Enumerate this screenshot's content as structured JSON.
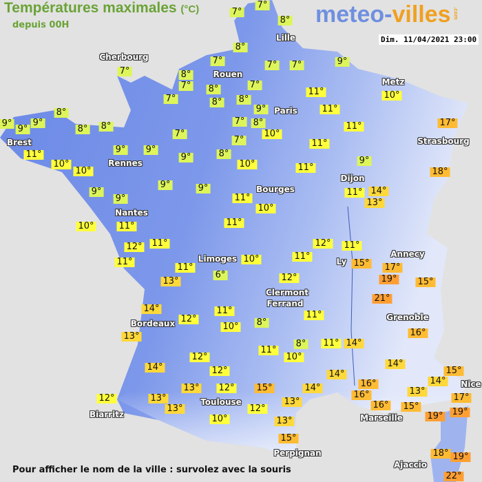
{
  "header": {
    "title": "Températures maximales",
    "unit": "(°C)",
    "subtitle": "depuis 00H",
    "logo_main": "meteo-",
    "logo_accent": "villes",
    "logo_suffix": ".com",
    "datetime": "Dim. 11/04/2021 23:00"
  },
  "footer": {
    "hint": "Pour afficher le nom de la ville : survolez avec la souris"
  },
  "colors": {
    "cold": "#ddf55a",
    "mild": "#ffff3c",
    "warm": "#ffd83a",
    "hot": "#ffbb33",
    "very_hot": "#ff9f33",
    "land": "#6e8ee8",
    "sea": "#e2e2e2"
  },
  "cities": [
    "Lille",
    "Cherbourg",
    "Rouen",
    "Paris",
    "Metz",
    "Strasbourg",
    "Brest",
    "Rennes",
    "Dijon",
    "Bourges",
    "Nantes",
    "Limoges",
    "Ly",
    "Annecy",
    "Clermont",
    "Ferrand",
    "Bordeaux",
    "Grenoble",
    "Toulouse",
    "Biarritz",
    "Marseille",
    "Nice",
    "Perpignan",
    "Ajaccio"
  ],
  "temperatures": [
    "7°",
    "7°",
    "8°",
    "7°",
    "8°",
    "7°",
    "7°",
    "8°",
    "7°",
    "7°",
    "9°",
    "7°",
    "8°",
    "8°",
    "7°",
    "8°",
    "9°",
    "7°",
    "8°",
    "7°",
    "10°",
    "11°",
    "11°",
    "10°",
    "11°",
    "11°",
    "17°",
    "18°",
    "9°",
    "9°",
    "9°",
    "8°",
    "8°",
    "8°",
    "11°",
    "10°",
    "10°",
    "9°",
    "9°",
    "7°",
    "9°",
    "8°",
    "10°",
    "11°",
    "9°",
    "9°",
    "9°",
    "9°",
    "9°",
    "11°",
    "10°",
    "11°",
    "14°",
    "13°",
    "10°",
    "11°",
    "11°",
    "12°",
    "11°",
    "11°",
    "12°",
    "11°",
    "11°",
    "10°",
    "15°",
    "17°",
    "19°",
    "11°",
    "13°",
    "6°",
    "12°",
    "15°",
    "21°",
    "14°",
    "11°",
    "12°",
    "10°",
    "8°",
    "11°",
    "13°",
    "16°",
    "8°",
    "11°",
    "14°",
    "11°",
    "10°",
    "12°",
    "14°",
    "14°",
    "15°",
    "12°",
    "14°",
    "14°",
    "16°",
    "13°",
    "12°",
    "15°",
    "14°",
    "16°",
    "13°",
    "17°",
    "12°",
    "13°",
    "13°",
    "16°",
    "13°",
    "12°",
    "15°",
    "19°",
    "19°",
    "10°",
    "13°",
    "15°",
    "18°",
    "19°",
    "22°"
  ]
}
